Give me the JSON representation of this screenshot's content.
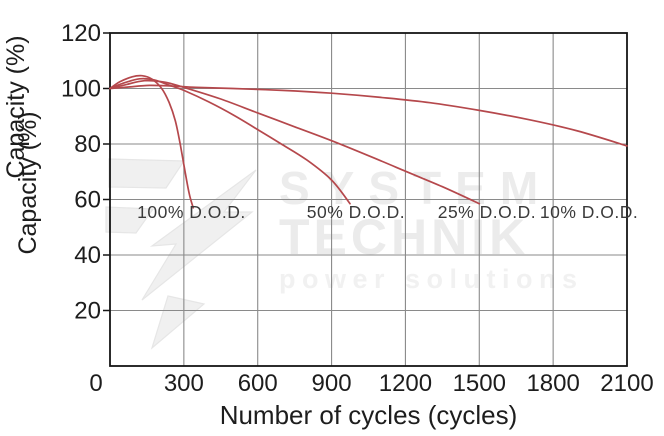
{
  "chart_data": {
    "type": "line",
    "title": "",
    "xlabel": "Number of cycles (cycles)",
    "ylabel": "Capacity (%)",
    "ylabel_drawn_twice": true,
    "xlim": [
      0,
      2100
    ],
    "ylim": [
      0,
      120
    ],
    "xticks": [
      0,
      300,
      600,
      900,
      1200,
      1500,
      1800,
      2100
    ],
    "yticks": [
      20,
      40,
      60,
      80,
      100,
      120
    ],
    "grid": true,
    "legend_position": "none",
    "colors": {
      "line": "#b5484c",
      "grid": "#8a8a8a",
      "axis": "#151515",
      "tick_text": "#1d1d1d",
      "annotation_text": "#3a3a3a",
      "watermark_text": "#ececec",
      "watermark_logo": "#f0f0f0"
    },
    "series": [
      {
        "name": "100% D.O.D.",
        "points": [
          [
            0,
            100
          ],
          [
            40,
            102.4
          ],
          [
            90,
            104.2
          ],
          [
            130,
            104.6
          ],
          [
            170,
            103.4
          ],
          [
            210,
            100
          ],
          [
            240,
            95
          ],
          [
            265,
            88.5
          ],
          [
            285,
            80
          ],
          [
            305,
            70
          ],
          [
            322,
            62
          ],
          [
            338,
            57
          ]
        ]
      },
      {
        "name": "50% D.O.D.",
        "points": [
          [
            0,
            100
          ],
          [
            50,
            101.8
          ],
          [
            120,
            103.5
          ],
          [
            180,
            103.1
          ],
          [
            240,
            101.2
          ],
          [
            300,
            99.3
          ],
          [
            400,
            95.2
          ],
          [
            500,
            90.5
          ],
          [
            600,
            85.2
          ],
          [
            700,
            79.8
          ],
          [
            800,
            74.2
          ],
          [
            900,
            67
          ],
          [
            975,
            58.5
          ]
        ]
      },
      {
        "name": "25% D.O.D.",
        "points": [
          [
            0,
            100
          ],
          [
            60,
            101.3
          ],
          [
            140,
            102.8
          ],
          [
            220,
            102.3
          ],
          [
            300,
            100.4
          ],
          [
            450,
            96.2
          ],
          [
            600,
            91.2
          ],
          [
            750,
            86.2
          ],
          [
            900,
            81.2
          ],
          [
            1050,
            75.8
          ],
          [
            1200,
            70.2
          ],
          [
            1350,
            64.6
          ],
          [
            1500,
            58.5
          ]
        ]
      },
      {
        "name": "10% D.O.D.",
        "points": [
          [
            0,
            100
          ],
          [
            70,
            100.5
          ],
          [
            160,
            101.1
          ],
          [
            250,
            100.9
          ],
          [
            350,
            100.4
          ],
          [
            500,
            100
          ],
          [
            700,
            99.3
          ],
          [
            900,
            98.3
          ],
          [
            1100,
            96.8
          ],
          [
            1300,
            94.9
          ],
          [
            1500,
            92.1
          ],
          [
            1700,
            88.8
          ],
          [
            1900,
            84.7
          ],
          [
            2100,
            79.3
          ]
        ]
      }
    ],
    "annotations": [
      {
        "text": "100% D.O.D.",
        "x": 331,
        "y": 53.4
      },
      {
        "text": "50% D.O.D.",
        "x": 999,
        "y": 53.4
      },
      {
        "text": "25% D.O.D.",
        "x": 1531,
        "y": 53.4
      },
      {
        "text": "10% D.O.D.",
        "x": 1946,
        "y": 53.4
      }
    ],
    "watermark": {
      "logo": "lightning-bolt",
      "line1": "SYSTEM",
      "line2": "TECHNIK",
      "line3": "power solutions"
    }
  }
}
